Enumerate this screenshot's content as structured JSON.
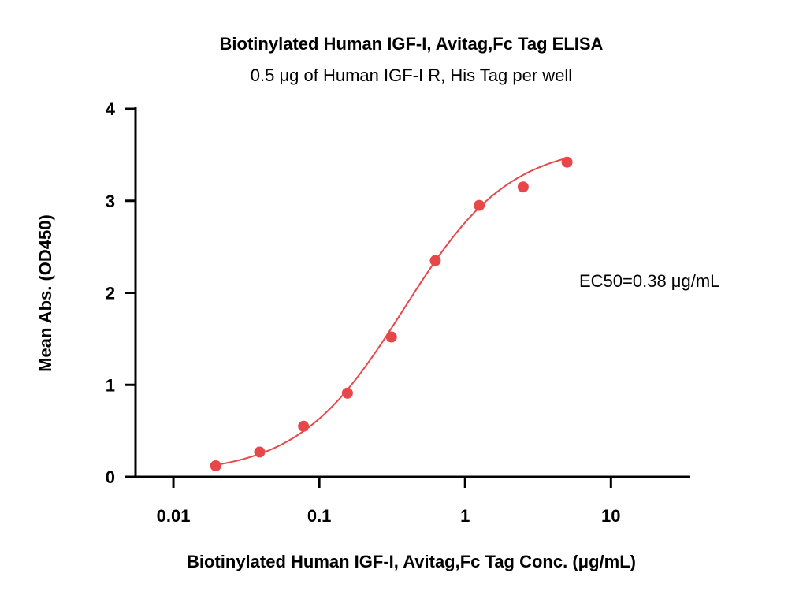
{
  "chart_data": {
    "type": "scatter",
    "title": "Biotinylated Human IGF-I, Avitag,Fc Tag ELISA",
    "subtitle": "0.5 μg of Human IGF-I R, His Tag per well",
    "xlabel": "Biotinylated Human IGF-I, Avitag,Fc Tag Conc. (μg/mL)",
    "ylabel": "Mean Abs. (OD450)",
    "x_scale": "log",
    "xlim": [
      0.0055,
      35
    ],
    "ylim": [
      0,
      4
    ],
    "x_ticks": [
      0.01,
      0.1,
      1,
      10
    ],
    "x_tick_labels": [
      "0.01",
      "0.1",
      "1",
      "10"
    ],
    "y_ticks": [
      0,
      1,
      2,
      3,
      4
    ],
    "y_tick_labels": [
      "0",
      "1",
      "2",
      "3",
      "4"
    ],
    "grid": false,
    "annotation": "EC50=0.38 μg/mL",
    "series": [
      {
        "color": "#e8474a",
        "x": [
          0.0195,
          0.039,
          0.078,
          0.156,
          0.3125,
          0.625,
          1.25,
          2.5,
          5
        ],
        "y": [
          0.12,
          0.27,
          0.55,
          0.91,
          1.52,
          2.35,
          2.95,
          3.15,
          3.42
        ],
        "fit": {
          "model": "4PL",
          "bottom": 0.03,
          "top": 3.62,
          "ec50": 0.38,
          "hill": 1.2
        }
      }
    ]
  }
}
